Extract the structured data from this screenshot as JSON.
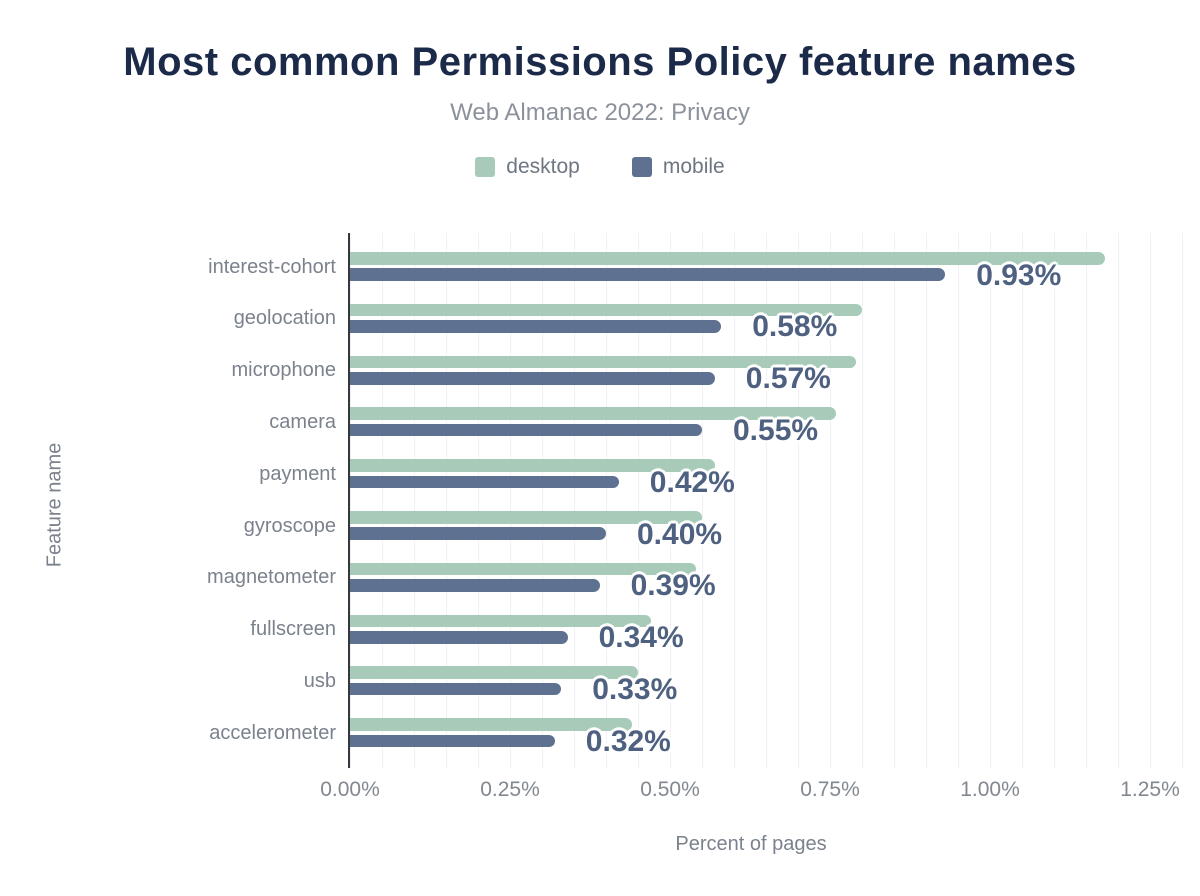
{
  "chart_data": {
    "type": "bar",
    "orientation": "horizontal",
    "title": "Most common Permissions Policy feature names",
    "subtitle": "Web Almanac 2022: Privacy",
    "xlabel": "Percent of pages",
    "ylabel": "Feature name",
    "categories": [
      "interest-cohort",
      "geolocation",
      "microphone",
      "camera",
      "payment",
      "gyroscope",
      "magnetometer",
      "fullscreen",
      "usb",
      "accelerometer"
    ],
    "series": [
      {
        "name": "desktop",
        "color": "#a8cbb9",
        "values": [
          1.18,
          0.8,
          0.79,
          0.76,
          0.57,
          0.55,
          0.54,
          0.47,
          0.45,
          0.44
        ]
      },
      {
        "name": "mobile",
        "color": "#5e7190",
        "values": [
          0.93,
          0.58,
          0.57,
          0.55,
          0.42,
          0.4,
          0.39,
          0.34,
          0.33,
          0.32
        ]
      }
    ],
    "bar_labels": [
      "0.93%",
      "0.58%",
      "0.57%",
      "0.55%",
      "0.42%",
      "0.40%",
      "0.39%",
      "0.34%",
      "0.33%",
      "0.32%"
    ],
    "x_ticks": [
      "0.00%",
      "0.25%",
      "0.50%",
      "0.75%",
      "1.00%",
      "1.25%"
    ],
    "x_tick_values": [
      0,
      0.25,
      0.5,
      0.75,
      1.0,
      1.25
    ],
    "xlim": [
      0,
      1.25
    ],
    "grid": "minor vertical every 0.05%",
    "legend_position": "top",
    "palette": {
      "title_color": "#1c2a4a",
      "subtitle_color": "#8c929b",
      "axis_label_color": "#7b828e",
      "value_label_color": "#4f6180",
      "axis_line_color": "#35383d",
      "gridline_color": "#f1f1f5"
    }
  }
}
